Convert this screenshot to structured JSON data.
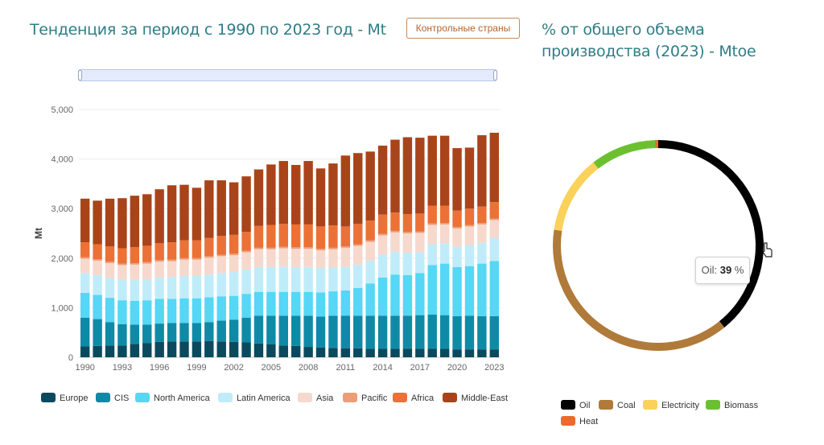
{
  "left_title": "Тенденция за период с 1990 по 2023 год - Mt",
  "right_title": "% от общего объема производства (2023) - Mtoe",
  "benchmark_button": "Контрольные страны",
  "tooltip": {
    "label": "Oil:",
    "value": "39",
    "unit": "%"
  },
  "chart_data": [
    {
      "type": "bar",
      "stacked": true,
      "title": "Тенденция за период с 1990 по 2023 год - Mt",
      "xlabel": "",
      "ylabel": "Mt",
      "ylim": [
        0,
        5000
      ],
      "yticks": [
        "0",
        "1,000",
        "2,000",
        "3,000",
        "4,000",
        "5,000"
      ],
      "xticks": [
        "1990",
        "1993",
        "1996",
        "1999",
        "2002",
        "2005",
        "2008",
        "2011",
        "2014",
        "2017",
        "2020",
        "2023"
      ],
      "grid": true,
      "legend_position": "bottom",
      "categories": [
        "1990",
        "1991",
        "1992",
        "1993",
        "1994",
        "1995",
        "1996",
        "1997",
        "1998",
        "1999",
        "2000",
        "2001",
        "2002",
        "2003",
        "2004",
        "2005",
        "2006",
        "2007",
        "2008",
        "2009",
        "2010",
        "2011",
        "2012",
        "2013",
        "2014",
        "2015",
        "2016",
        "2017",
        "2018",
        "2019",
        "2020",
        "2021",
        "2022",
        "2023"
      ],
      "series": [
        {
          "name": "Europe",
          "color": "#0b4a5e",
          "values": [
            220,
            230,
            240,
            240,
            270,
            290,
            310,
            320,
            320,
            320,
            330,
            320,
            310,
            300,
            280,
            260,
            240,
            230,
            210,
            200,
            190,
            180,
            180,
            170,
            170,
            170,
            170,
            170,
            170,
            170,
            160,
            160,
            160,
            160
          ]
        },
        {
          "name": "CIS",
          "color": "#0f8aa6",
          "values": [
            580,
            540,
            470,
            430,
            390,
            370,
            370,
            370,
            370,
            370,
            380,
            420,
            450,
            500,
            560,
            580,
            600,
            610,
            630,
            620,
            650,
            660,
            660,
            670,
            670,
            670,
            670,
            680,
            690,
            680,
            670,
            680,
            670,
            670
          ]
        },
        {
          "name": "North America",
          "color": "#55d7f5",
          "values": [
            500,
            490,
            490,
            480,
            480,
            490,
            500,
            490,
            500,
            500,
            500,
            490,
            480,
            480,
            480,
            480,
            480,
            480,
            480,
            490,
            490,
            510,
            560,
            650,
            770,
            830,
            820,
            850,
            1000,
            1040,
            990,
            1000,
            1060,
            1110
          ]
        },
        {
          "name": "Latin America",
          "color": "#c0ecf9",
          "values": [
            400,
            400,
            400,
            410,
            420,
            430,
            430,
            440,
            450,
            450,
            460,
            470,
            480,
            490,
            500,
            500,
            510,
            500,
            500,
            490,
            480,
            480,
            470,
            460,
            460,
            460,
            450,
            420,
            420,
            410,
            410,
            420,
            420,
            470
          ]
        },
        {
          "name": "Asia",
          "color": "#f6d8cc",
          "values": [
            290,
            290,
            300,
            300,
            310,
            310,
            320,
            320,
            330,
            330,
            340,
            340,
            340,
            350,
            360,
            360,
            370,
            370,
            370,
            360,
            370,
            380,
            380,
            380,
            390,
            390,
            390,
            390,
            390,
            380,
            370,
            380,
            370,
            360
          ]
        },
        {
          "name": "Pacific",
          "color": "#ec9e78",
          "values": [
            30,
            30,
            30,
            30,
            30,
            30,
            30,
            30,
            30,
            30,
            30,
            30,
            30,
            30,
            30,
            30,
            30,
            30,
            30,
            30,
            30,
            30,
            30,
            30,
            30,
            30,
            30,
            30,
            30,
            30,
            30,
            30,
            30,
            30
          ]
        },
        {
          "name": "Africa",
          "color": "#ec7136",
          "values": [
            300,
            300,
            310,
            310,
            320,
            330,
            340,
            350,
            360,
            360,
            370,
            380,
            380,
            380,
            440,
            460,
            460,
            460,
            460,
            450,
            450,
            400,
            410,
            400,
            390,
            370,
            360,
            360,
            360,
            350,
            330,
            330,
            330,
            330
          ]
        },
        {
          "name": "Middle-East",
          "color": "#a9441a",
          "values": [
            880,
            880,
            960,
            1010,
            1040,
            1040,
            1090,
            1150,
            1120,
            1060,
            1160,
            1120,
            1060,
            1120,
            1140,
            1220,
            1270,
            1200,
            1280,
            1170,
            1250,
            1430,
            1430,
            1390,
            1390,
            1470,
            1550,
            1530,
            1410,
            1410,
            1260,
            1230,
            1440,
            1400
          ]
        }
      ]
    },
    {
      "type": "pie",
      "donut": true,
      "title": "% от общего объема производства (2023) - Mtoe",
      "legend_position": "bottom",
      "labels": [
        "Oil",
        "Coal",
        "Electricity",
        "Biomass",
        "Heat"
      ],
      "colors": [
        "#000000",
        "#b07a3a",
        "#fad25b",
        "#6cc030",
        "#ec6a2d"
      ],
      "values": [
        39,
        38,
        12,
        10,
        0.5
      ]
    }
  ]
}
